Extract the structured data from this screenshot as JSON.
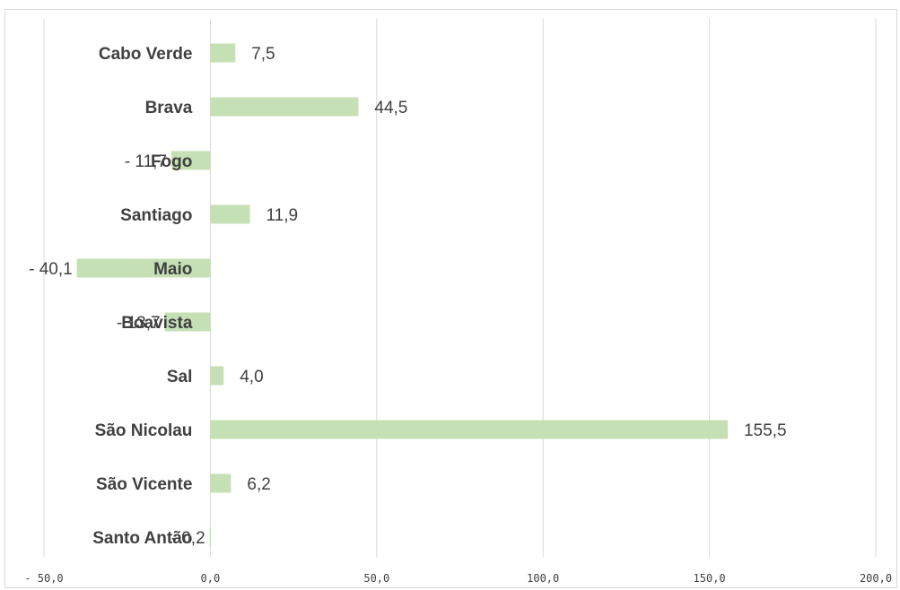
{
  "chart_data": {
    "type": "bar",
    "orientation": "horizontal",
    "categories": [
      "Cabo Verde",
      "Brava",
      "Fogo",
      "Santiago",
      "Maio",
      "Boavista",
      "Sal",
      "São Nicolau",
      "São Vicente",
      "Santo Antão"
    ],
    "values": [
      7.5,
      44.5,
      -11.7,
      11.9,
      -40.1,
      -13.7,
      4.0,
      155.5,
      6.2,
      -0.2
    ],
    "value_labels": [
      "7,5",
      "44,5",
      "- 11,7",
      "11,9",
      "- 40,1",
      "- 13,7",
      "4,0",
      "155,5",
      "6,2",
      "- 0,2"
    ],
    "xlim": [
      -50,
      200
    ],
    "x_ticks": [
      -50,
      0,
      50,
      100,
      150,
      200
    ],
    "x_tick_labels": [
      "- 50,0",
      "0,0",
      "50,0",
      "100,0",
      "150,0",
      "200,0"
    ],
    "grid": true,
    "legend": "none",
    "colors": {
      "bar": "#c5e0b4",
      "gridline": "#d9d9d9",
      "text": "#404040"
    }
  }
}
